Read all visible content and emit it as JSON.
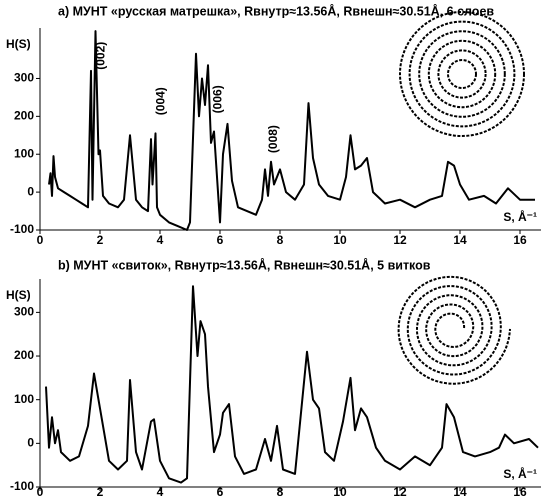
{
  "chart_data": [
    {
      "type": "line",
      "title": "a) МУНТ «русская матрешка», Rвнутр≈13.56Å, Rвнешн≈30.51Å, 6 слоев",
      "y_label": "H(S)",
      "x_label": "S, Å⁻¹",
      "annotations": [
        "(002)",
        "(004)",
        "(006)",
        "(008)"
      ],
      "xlim": [
        0,
        16.7
      ],
      "xticks": [
        0,
        2,
        4,
        6,
        8,
        10,
        12,
        14,
        16
      ],
      "ylim": [
        -100,
        420
      ],
      "yticks": [
        -100,
        0,
        100,
        200,
        300
      ],
      "x": [
        0.3,
        0.35,
        0.4,
        0.45,
        0.5,
        0.6,
        0.8,
        1.0,
        1.2,
        1.4,
        1.6,
        1.7,
        1.75,
        1.85,
        1.95,
        2.0,
        2.1,
        2.3,
        2.6,
        2.8,
        3.0,
        3.2,
        3.4,
        3.6,
        3.7,
        3.75,
        3.85,
        3.9,
        4.0,
        4.3,
        4.6,
        4.9,
        5.0,
        5.2,
        5.3,
        5.4,
        5.5,
        5.6,
        5.7,
        5.8,
        6.0,
        6.1,
        6.25,
        6.4,
        6.6,
        6.9,
        7.2,
        7.4,
        7.5,
        7.6,
        7.7,
        7.8,
        8.0,
        8.2,
        8.5,
        8.8,
        8.95,
        9.1,
        9.3,
        9.6,
        10.0,
        10.2,
        10.35,
        10.5,
        10.7,
        10.9,
        11.1,
        11.5,
        12.0,
        12.5,
        13.0,
        13.4,
        13.6,
        13.8,
        14.0,
        14.3,
        14.8,
        15.2,
        15.6,
        16.0,
        16.5
      ],
      "series": [
        {
          "color": "#000000",
          "values": [
            20,
            50,
            -10,
            95,
            40,
            10,
            0,
            -10,
            -20,
            -30,
            -40,
            320,
            -20,
            425,
            100,
            110,
            -10,
            -30,
            -40,
            -20,
            150,
            -20,
            -40,
            -50,
            140,
            20,
            155,
            -40,
            -60,
            -80,
            -90,
            -100,
            -80,
            365,
            200,
            300,
            230,
            335,
            130,
            160,
            -80,
            100,
            180,
            30,
            -40,
            -50,
            -60,
            -20,
            60,
            -10,
            80,
            20,
            60,
            0,
            -20,
            20,
            235,
            90,
            20,
            -10,
            -20,
            40,
            150,
            60,
            70,
            90,
            0,
            -30,
            -20,
            -40,
            -20,
            -10,
            80,
            70,
            20,
            -20,
            -10,
            -30,
            10,
            -20,
            -20
          ]
        }
      ]
    },
    {
      "type": "line",
      "title": "b) МУНТ «свиток», Rвнутр≈13.56Å, Rвнешн≈30.51Å, 5 витков",
      "y_label": "H(S)",
      "x_label": "S, Å⁻¹",
      "xlim": [
        0,
        16.7
      ],
      "xticks": [
        0,
        2,
        4,
        6,
        8,
        10,
        12,
        14,
        16
      ],
      "ylim": [
        -100,
        365
      ],
      "yticks": [
        -100,
        0,
        100,
        200,
        300
      ],
      "x": [
        0.2,
        0.3,
        0.4,
        0.5,
        0.6,
        0.7,
        1.0,
        1.3,
        1.6,
        1.8,
        2.0,
        2.3,
        2.6,
        2.9,
        3.0,
        3.2,
        3.4,
        3.7,
        3.8,
        4.0,
        4.3,
        4.7,
        4.9,
        5.1,
        5.25,
        5.35,
        5.5,
        5.6,
        5.8,
        6.0,
        6.1,
        6.3,
        6.5,
        6.8,
        7.2,
        7.5,
        7.7,
        7.9,
        8.1,
        8.5,
        8.9,
        9.1,
        9.3,
        9.5,
        9.8,
        10.1,
        10.35,
        10.5,
        10.7,
        10.9,
        11.2,
        11.5,
        12.0,
        12.5,
        13.0,
        13.4,
        13.55,
        13.8,
        14.1,
        14.5,
        15.0,
        15.3,
        15.5,
        15.8,
        16.3,
        16.6
      ],
      "series": [
        {
          "color": "#000000",
          "values": [
            130,
            -10,
            60,
            0,
            30,
            -20,
            -40,
            -30,
            40,
            160,
            80,
            -40,
            -60,
            -40,
            145,
            -20,
            -60,
            50,
            55,
            -40,
            -80,
            -90,
            -80,
            360,
            200,
            280,
            250,
            130,
            -20,
            20,
            70,
            90,
            -30,
            -70,
            -60,
            10,
            -40,
            40,
            -60,
            -70,
            210,
            100,
            80,
            -20,
            -40,
            50,
            150,
            30,
            80,
            60,
            -10,
            -40,
            -60,
            -30,
            -50,
            -10,
            90,
            60,
            -20,
            -30,
            -20,
            -10,
            20,
            0,
            10,
            -10
          ]
        }
      ]
    }
  ]
}
